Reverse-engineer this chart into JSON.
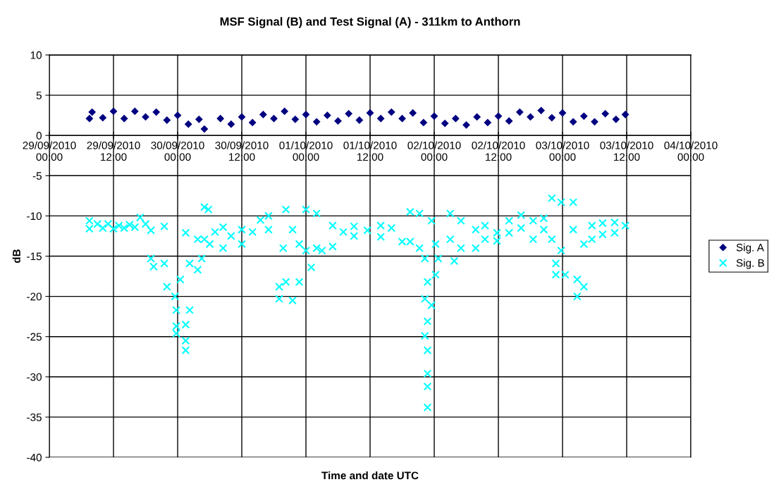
{
  "chart_data": {
    "type": "scatter",
    "title": "MSF Signal (B) and Test Signal (A) - 311km to Anthorn",
    "xlabel": "Time and date UTC",
    "ylabel": "dB",
    "xlim": [
      "2010-09-29T00:00",
      "2010-10-04T00:00"
    ],
    "xticks": [
      {
        "value": "2010-09-29T00:00",
        "label": "29/09/2010\n00:00"
      },
      {
        "value": "2010-09-29T12:00",
        "label": "29/09/2010\n12:00"
      },
      {
        "value": "2010-09-30T00:00",
        "label": "30/09/2010\n00:00"
      },
      {
        "value": "2010-09-30T12:00",
        "label": "30/09/2010\n12:00"
      },
      {
        "value": "2010-10-01T00:00",
        "label": "01/10/2010\n00:00"
      },
      {
        "value": "2010-10-01T12:00",
        "label": "01/10/2010\n12:00"
      },
      {
        "value": "2010-10-02T00:00",
        "label": "02/10/2010\n00:00"
      },
      {
        "value": "2010-10-02T12:00",
        "label": "02/10/2010\n12:00"
      },
      {
        "value": "2010-10-03T00:00",
        "label": "03/10/2010\n00:00"
      },
      {
        "value": "2010-10-03T12:00",
        "label": "03/10/2010\n12:00"
      },
      {
        "value": "2010-10-04T00:00",
        "label": "04/10/2010\n00:00"
      }
    ],
    "ylim": [
      -40,
      10
    ],
    "yticks": [
      -40,
      -35,
      -30,
      -25,
      -20,
      -15,
      -10,
      -5,
      0,
      5,
      10
    ],
    "grid": true,
    "legend": "right",
    "series": [
      {
        "name": "Sig. A",
        "color": "#000080",
        "marker": "diamond",
        "x": [
          "2010-09-29T07:30",
          "2010-09-29T08:00",
          "2010-09-29T10:00",
          "2010-09-29T12:00",
          "2010-09-29T14:00",
          "2010-09-29T16:00",
          "2010-09-29T18:00",
          "2010-09-29T20:00",
          "2010-09-29T22:00",
          "2010-09-30T00:00",
          "2010-09-30T02:00",
          "2010-09-30T04:00",
          "2010-09-30T05:00",
          "2010-09-30T08:00",
          "2010-09-30T10:00",
          "2010-09-30T12:00",
          "2010-09-30T14:00",
          "2010-09-30T16:00",
          "2010-09-30T18:00",
          "2010-09-30T20:00",
          "2010-09-30T22:00",
          "2010-10-01T00:00",
          "2010-10-01T02:00",
          "2010-10-01T04:00",
          "2010-10-01T06:00",
          "2010-10-01T08:00",
          "2010-10-01T10:00",
          "2010-10-01T12:00",
          "2010-10-01T14:00",
          "2010-10-01T16:00",
          "2010-10-01T18:00",
          "2010-10-01T20:00",
          "2010-10-01T22:00",
          "2010-10-02T00:00",
          "2010-10-02T02:00",
          "2010-10-02T04:00",
          "2010-10-02T06:00",
          "2010-10-02T08:00",
          "2010-10-02T10:00",
          "2010-10-02T12:00",
          "2010-10-02T14:00",
          "2010-10-02T16:00",
          "2010-10-02T18:00",
          "2010-10-02T20:00",
          "2010-10-02T22:00",
          "2010-10-03T00:00",
          "2010-10-03T02:00",
          "2010-10-03T04:00",
          "2010-10-03T06:00",
          "2010-10-03T08:00",
          "2010-10-03T10:00",
          "2010-10-03T11:45"
        ],
        "values": [
          2.1,
          2.9,
          2.2,
          3.0,
          2.1,
          3.0,
          2.3,
          2.9,
          1.9,
          2.5,
          1.4,
          2.0,
          0.8,
          2.1,
          1.4,
          2.3,
          1.6,
          2.6,
          2.1,
          3.0,
          2.0,
          2.6,
          1.7,
          2.5,
          1.8,
          2.7,
          1.9,
          2.8,
          2.1,
          2.9,
          2.1,
          2.8,
          1.6,
          2.4,
          1.5,
          2.1,
          1.3,
          2.3,
          1.6,
          2.4,
          1.8,
          2.9,
          2.3,
          3.1,
          2.2,
          2.8,
          1.7,
          2.4,
          1.7,
          2.7,
          2.0,
          2.6
        ]
      },
      {
        "name": "Sig. B",
        "color": "#00ffff",
        "marker": "cross",
        "x": [
          "2010-09-29T07:30",
          "2010-09-29T07:30",
          "2010-09-29T09:00",
          "2010-09-29T10:00",
          "2010-09-29T11:00",
          "2010-09-29T12:00",
          "2010-09-29T13:00",
          "2010-09-29T14:00",
          "2010-09-29T15:00",
          "2010-09-29T16:00",
          "2010-09-29T17:00",
          "2010-09-29T18:00",
          "2010-09-29T19:00",
          "2010-09-29T19:00",
          "2010-09-29T19:30",
          "2010-09-29T21:30",
          "2010-09-29T21:30",
          "2010-09-29T22:00",
          "2010-09-29T23:30",
          "2010-09-29T23:45",
          "2010-09-29T23:45",
          "2010-09-29T23:45",
          "2010-09-30T00:30",
          "2010-09-30T01:30",
          "2010-09-30T01:30",
          "2010-09-30T01:30",
          "2010-09-30T01:30",
          "2010-09-30T02:15",
          "2010-09-30T02:15",
          "2010-09-30T03:45",
          "2010-09-30T03:45",
          "2010-09-30T04:30",
          "2010-09-30T05:00",
          "2010-09-30T05:00",
          "2010-09-30T05:45",
          "2010-09-30T06:00",
          "2010-09-30T07:00",
          "2010-09-30T08:30",
          "2010-09-30T08:30",
          "2010-09-30T10:00",
          "2010-09-30T12:00",
          "2010-09-30T12:00",
          "2010-09-30T14:00",
          "2010-09-30T15:30",
          "2010-09-30T17:00",
          "2010-09-30T17:00",
          "2010-09-30T19:00",
          "2010-09-30T19:00",
          "2010-09-30T19:45",
          "2010-09-30T20:15",
          "2010-09-30T20:15",
          "2010-09-30T21:30",
          "2010-09-30T21:30",
          "2010-09-30T22:45",
          "2010-09-30T22:45",
          "2010-10-01T00:00",
          "2010-10-01T00:00",
          "2010-10-01T01:00",
          "2010-10-01T02:00",
          "2010-10-01T02:00",
          "2010-10-01T03:00",
          "2010-10-01T05:00",
          "2010-10-01T05:00",
          "2010-10-01T07:00",
          "2010-10-01T09:00",
          "2010-10-01T09:00",
          "2010-10-01T11:30",
          "2010-10-01T14:00",
          "2010-10-01T14:00",
          "2010-10-01T16:00",
          "2010-10-01T18:00",
          "2010-10-01T19:30",
          "2010-10-01T19:30",
          "2010-10-01T21:15",
          "2010-10-01T21:15",
          "2010-10-01T22:15",
          "2010-10-01T22:15",
          "2010-10-01T22:15",
          "2010-10-01T22:45",
          "2010-10-01T22:45",
          "2010-10-01T22:45",
          "2010-10-01T22:45",
          "2010-10-01T22:45",
          "2010-10-01T22:45",
          "2010-10-01T23:30",
          "2010-10-01T23:30",
          "2010-10-02T00:15",
          "2010-10-02T00:15",
          "2010-10-02T00:45",
          "2010-10-02T03:00",
          "2010-10-02T03:00",
          "2010-10-02T03:45",
          "2010-10-02T05:00",
          "2010-10-02T05:00",
          "2010-10-02T07:45",
          "2010-10-02T07:45",
          "2010-10-02T09:30",
          "2010-10-02T09:30",
          "2010-10-02T11:45",
          "2010-10-02T11:45",
          "2010-10-02T14:00",
          "2010-10-02T14:00",
          "2010-10-02T16:15",
          "2010-10-02T16:15",
          "2010-10-02T18:30",
          "2010-10-02T18:30",
          "2010-10-02T20:30",
          "2010-10-02T20:30",
          "2010-10-02T22:00",
          "2010-10-02T22:00",
          "2010-10-02T22:45",
          "2010-10-02T22:45",
          "2010-10-02T23:45",
          "2010-10-02T23:45",
          "2010-10-03T00:30",
          "2010-10-03T02:00",
          "2010-10-03T02:00",
          "2010-10-03T02:45",
          "2010-10-03T02:45",
          "2010-10-03T04:00",
          "2010-10-03T04:00",
          "2010-10-03T05:30",
          "2010-10-03T05:30",
          "2010-10-03T07:30",
          "2010-10-03T07:30",
          "2010-10-03T09:45",
          "2010-10-03T09:45",
          "2010-10-03T11:45"
        ],
        "values": [
          -10.6,
          -11.6,
          -11.0,
          -11.5,
          -11.0,
          -11.6,
          -11.2,
          -11.5,
          -11.1,
          -11.4,
          -10.2,
          -11.0,
          -11.8,
          -15.3,
          -16.3,
          -11.3,
          -15.9,
          -18.8,
          -20.0,
          -24.6,
          -23.7,
          -21.7,
          -17.9,
          -12.1,
          -25.5,
          -26.7,
          -23.5,
          -21.7,
          -15.9,
          -16.7,
          -12.9,
          -15.3,
          -8.9,
          -12.9,
          -9.2,
          -13.5,
          -12.0,
          -11.4,
          -14.0,
          -12.5,
          -11.7,
          -13.5,
          -12.0,
          -10.5,
          -10.0,
          -11.7,
          -18.8,
          -20.3,
          -14.0,
          -9.2,
          -18.2,
          -20.5,
          -11.7,
          -18.2,
          -13.5,
          -9.2,
          -14.3,
          -16.4,
          -9.7,
          -14.0,
          -14.3,
          -13.8,
          -11.2,
          -12.0,
          -11.3,
          -12.5,
          -11.8,
          -11.2,
          -12.6,
          -11.5,
          -13.2,
          -9.5,
          -13.2,
          -9.7,
          -14.0,
          -15.3,
          -20.3,
          -24.9,
          -26.7,
          -29.6,
          -31.2,
          -33.8,
          -23.1,
          -18.2,
          -10.6,
          -21.1,
          -13.5,
          -17.3,
          -15.3,
          -9.7,
          -12.9,
          -15.6,
          -10.6,
          -14.0,
          -14.0,
          -11.7,
          -11.2,
          -12.9,
          -12.1,
          -13.1,
          -10.6,
          -12.1,
          -9.9,
          -11.5,
          -10.6,
          -12.9,
          -10.3,
          -11.7,
          -7.8,
          -12.9,
          -17.3,
          -15.9,
          -8.3,
          -14.3,
          -17.3,
          -8.3,
          -11.7,
          -17.9,
          -20.0,
          -18.8,
          -13.5,
          -11.2,
          -12.9,
          -10.9,
          -12.3,
          -10.8,
          -12.1,
          -11.2
        ]
      }
    ]
  }
}
